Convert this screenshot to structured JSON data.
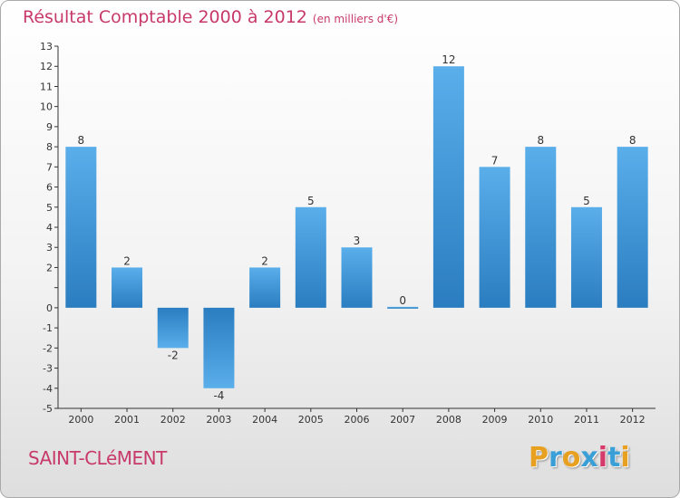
{
  "title": "Résultat Comptable 2000 à 2012",
  "unit": "(en milliers d'€)",
  "location": "SAINT-CLéMENT",
  "brand": {
    "letters": [
      "P",
      "r",
      "o",
      "x",
      "i",
      "t",
      "i"
    ],
    "colors": [
      "#e8a020",
      "#3a9fd6",
      "#e8a020",
      "#3a9fd6",
      "#d63a6a",
      "#3a9fd6",
      "#e8a020"
    ]
  },
  "colors": {
    "bar_top": "#5aaeea",
    "bar_bottom": "#2a7dc0",
    "title": "#c8396b",
    "axis": "#333333"
  },
  "chart_data": {
    "type": "bar",
    "title": "Résultat Comptable 2000 à 2012",
    "xlabel": "",
    "ylabel": "",
    "categories": [
      "2000",
      "2001",
      "2002",
      "2003",
      "2004",
      "2005",
      "2006",
      "2007",
      "2008",
      "2009",
      "2010",
      "2011",
      "2012"
    ],
    "values": [
      8,
      2,
      -2,
      -4,
      2,
      5,
      3,
      0,
      12,
      7,
      8,
      5,
      8
    ],
    "ylim": [
      -5,
      13
    ],
    "yticks": [
      -5,
      -4,
      -3,
      -2,
      -1,
      0,
      1,
      2,
      3,
      4,
      5,
      6,
      7,
      8,
      9,
      10,
      11,
      12,
      13
    ],
    "ytick_labels": [
      "-5",
      "-4",
      "-3",
      "-2",
      "-1",
      "0",
      "",
      "2",
      "3",
      "4",
      "5",
      "6",
      "7",
      "8",
      "9",
      "10",
      "11",
      "12",
      "13"
    ]
  }
}
